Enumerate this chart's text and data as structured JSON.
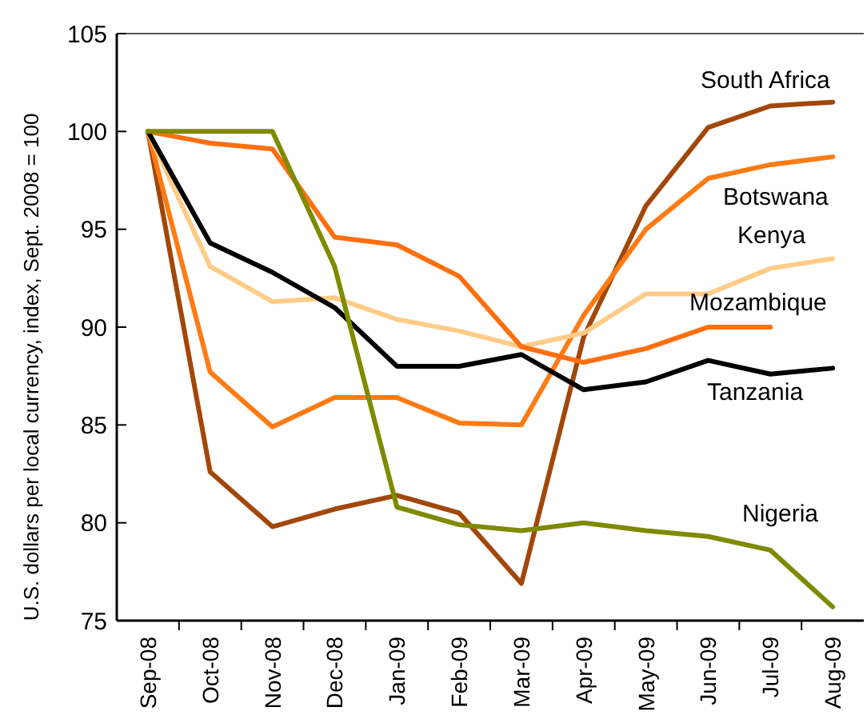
{
  "chart_data": {
    "type": "line",
    "ylabel": "U.S. dollars per local currency, index, Sept. 2008 = 100",
    "categories": [
      "Sep-08",
      "Oct-08",
      "Nov-08",
      "Dec-08",
      "Jan-09",
      "Feb-09",
      "Mar-09",
      "Apr-09",
      "May-09",
      "Jun-09",
      "Jul-09",
      "Aug-09"
    ],
    "ylim": [
      75,
      105
    ],
    "yticks": [
      75,
      80,
      85,
      90,
      95,
      100,
      105
    ],
    "grid": false,
    "marker": "none",
    "line_style": "solid",
    "series": [
      {
        "name": "South Africa",
        "color": "#a2470a",
        "values": [
          100,
          82.6,
          79.8,
          80.7,
          81.4,
          80.5,
          76.9,
          89.5,
          96.2,
          100.2,
          101.3,
          101.5
        ]
      },
      {
        "name": "Botswana",
        "color": "#ff7b14",
        "values": [
          100,
          87.7,
          84.9,
          86.4,
          86.4,
          85.1,
          85.0,
          90.6,
          95.0,
          97.6,
          98.3,
          98.7
        ]
      },
      {
        "name": "Kenya",
        "color": "#ffcc88",
        "values": [
          100,
          93.1,
          91.3,
          91.5,
          90.4,
          89.8,
          89.0,
          89.7,
          91.7,
          91.7,
          93.0,
          93.5
        ]
      },
      {
        "name": "Mozambique",
        "color": "#ff6f0f",
        "values": [
          100,
          99.4,
          99.1,
          94.6,
          94.2,
          92.6,
          89.0,
          88.2,
          88.9,
          90.0,
          90.0,
          null
        ]
      },
      {
        "name": "Tanzania",
        "color": "#000000",
        "values": [
          100,
          94.3,
          92.8,
          91.0,
          88.0,
          88.0,
          88.6,
          86.8,
          87.2,
          88.3,
          87.6,
          87.9
        ]
      },
      {
        "name": "Nigeria",
        "color": "#7f8a00",
        "values": [
          100,
          100,
          100,
          93.1,
          80.8,
          79.9,
          79.6,
          80.0,
          79.6,
          79.3,
          78.6,
          75.7
        ]
      }
    ]
  }
}
